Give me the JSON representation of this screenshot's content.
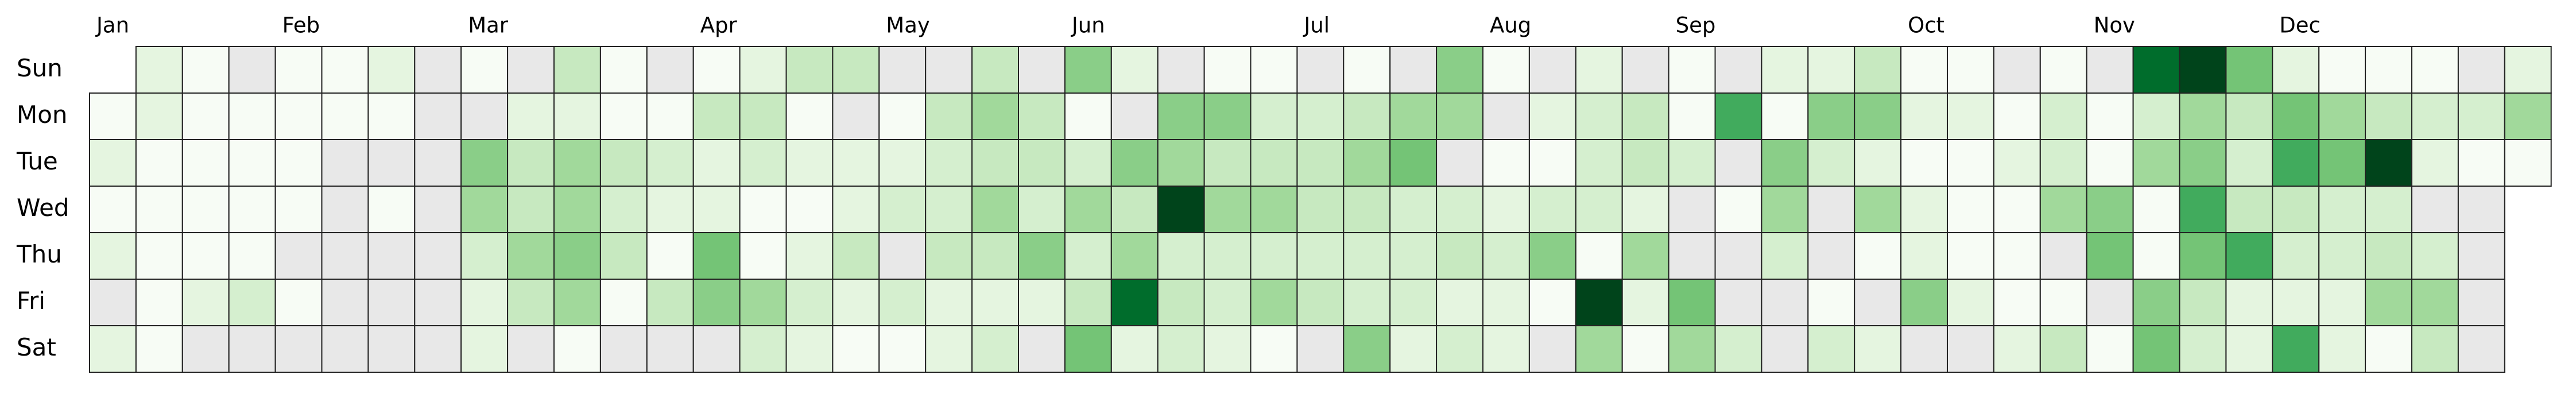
{
  "chart_data": {
    "type": "calendar-heatmap",
    "days": [
      "Sun",
      "Mon",
      "Tue",
      "Wed",
      "Thu",
      "Fri",
      "Sat"
    ],
    "weeks": [
      "Jan",
      null,
      null,
      null,
      "Feb",
      null,
      null,
      null,
      "Mar",
      null,
      null,
      null,
      null,
      "Apr",
      null,
      null,
      null,
      "May",
      null,
      null,
      null,
      "Jun",
      null,
      null,
      null,
      null,
      "Jul",
      null,
      null,
      null,
      "Aug",
      null,
      null,
      null,
      "Sep",
      null,
      null,
      null,
      null,
      "Oct",
      null,
      null,
      null,
      "Nov",
      null,
      null,
      null,
      "Dec",
      null,
      null,
      null,
      null,
      null
    ],
    "values": [
      [
        null,
        2,
        1,
        0,
        1,
        1,
        2,
        0,
        1,
        0,
        4,
        1,
        0,
        1,
        2,
        4,
        4,
        0,
        0,
        4,
        0,
        6,
        2,
        0,
        1,
        1,
        0,
        1,
        0,
        6,
        1,
        0,
        2,
        0,
        1,
        0,
        2,
        2,
        4,
        1,
        1,
        0,
        1,
        0,
        9,
        10,
        7,
        2,
        1,
        1,
        1,
        0,
        2
      ],
      [
        1,
        2,
        1,
        1,
        1,
        1,
        1,
        0,
        0,
        2,
        2,
        1,
        1,
        4,
        4,
        1,
        0,
        1,
        4,
        5,
        4,
        1,
        0,
        6,
        6,
        3,
        3,
        4,
        5,
        5,
        0,
        2,
        3,
        4,
        1,
        8,
        1,
        6,
        6,
        2,
        2,
        1,
        3,
        1,
        3,
        5,
        4,
        7,
        5,
        4,
        3,
        3,
        5
      ],
      [
        2,
        1,
        1,
        1,
        1,
        0,
        0,
        0,
        6,
        4,
        5,
        4,
        3,
        2,
        3,
        2,
        2,
        2,
        3,
        4,
        4,
        3,
        6,
        5,
        4,
        4,
        4,
        5,
        7,
        0,
        1,
        1,
        3,
        4,
        3,
        0,
        6,
        3,
        2,
        1,
        1,
        2,
        3,
        1,
        5,
        6,
        3,
        8,
        7,
        10,
        2,
        1,
        1
      ],
      [
        1,
        1,
        1,
        1,
        1,
        0,
        1,
        0,
        5,
        4,
        5,
        3,
        2,
        2,
        1,
        1,
        2,
        3,
        3,
        5,
        3,
        5,
        4,
        10,
        5,
        5,
        4,
        4,
        3,
        3,
        2,
        3,
        3,
        2,
        0,
        1,
        5,
        0,
        5,
        2,
        1,
        1,
        5,
        6,
        1,
        8,
        4,
        4,
        3,
        3,
        0,
        0,
        null
      ],
      [
        2,
        1,
        1,
        1,
        0,
        0,
        0,
        0,
        3,
        5,
        6,
        4,
        1,
        7,
        1,
        2,
        4,
        0,
        4,
        4,
        6,
        3,
        5,
        3,
        3,
        3,
        3,
        3,
        3,
        4,
        3,
        6,
        1,
        5,
        0,
        0,
        3,
        0,
        1,
        2,
        1,
        1,
        0,
        7,
        1,
        7,
        8,
        3,
        3,
        4,
        3,
        0,
        null
      ],
      [
        0,
        1,
        2,
        3,
        1,
        0,
        0,
        0,
        2,
        4,
        5,
        1,
        4,
        6,
        5,
        3,
        2,
        3,
        2,
        2,
        2,
        4,
        9,
        4,
        3,
        5,
        4,
        3,
        3,
        2,
        2,
        1,
        10,
        2,
        7,
        0,
        0,
        1,
        0,
        6,
        2,
        1,
        1,
        0,
        6,
        4,
        2,
        2,
        2,
        5,
        5,
        0,
        null
      ],
      [
        2,
        1,
        0,
        0,
        0,
        0,
        0,
        0,
        2,
        0,
        1,
        0,
        0,
        0,
        3,
        2,
        1,
        1,
        2,
        3,
        0,
        7,
        2,
        3,
        2,
        1,
        0,
        6,
        2,
        3,
        2,
        0,
        5,
        1,
        5,
        3,
        0,
        3,
        2,
        0,
        0,
        2,
        4,
        1,
        7,
        3,
        2,
        8,
        2,
        1,
        4,
        0,
        null
      ]
    ],
    "colors": [
      "#f7fcf5",
      "#e5f5e0",
      "#d5efcf",
      "#c7e9c0",
      "#a1d99b",
      "#8ace88",
      "#74c476",
      "#41ab5d",
      "#006d2c",
      "#00441b"
    ],
    "zero_color": "#e8e8e8"
  }
}
